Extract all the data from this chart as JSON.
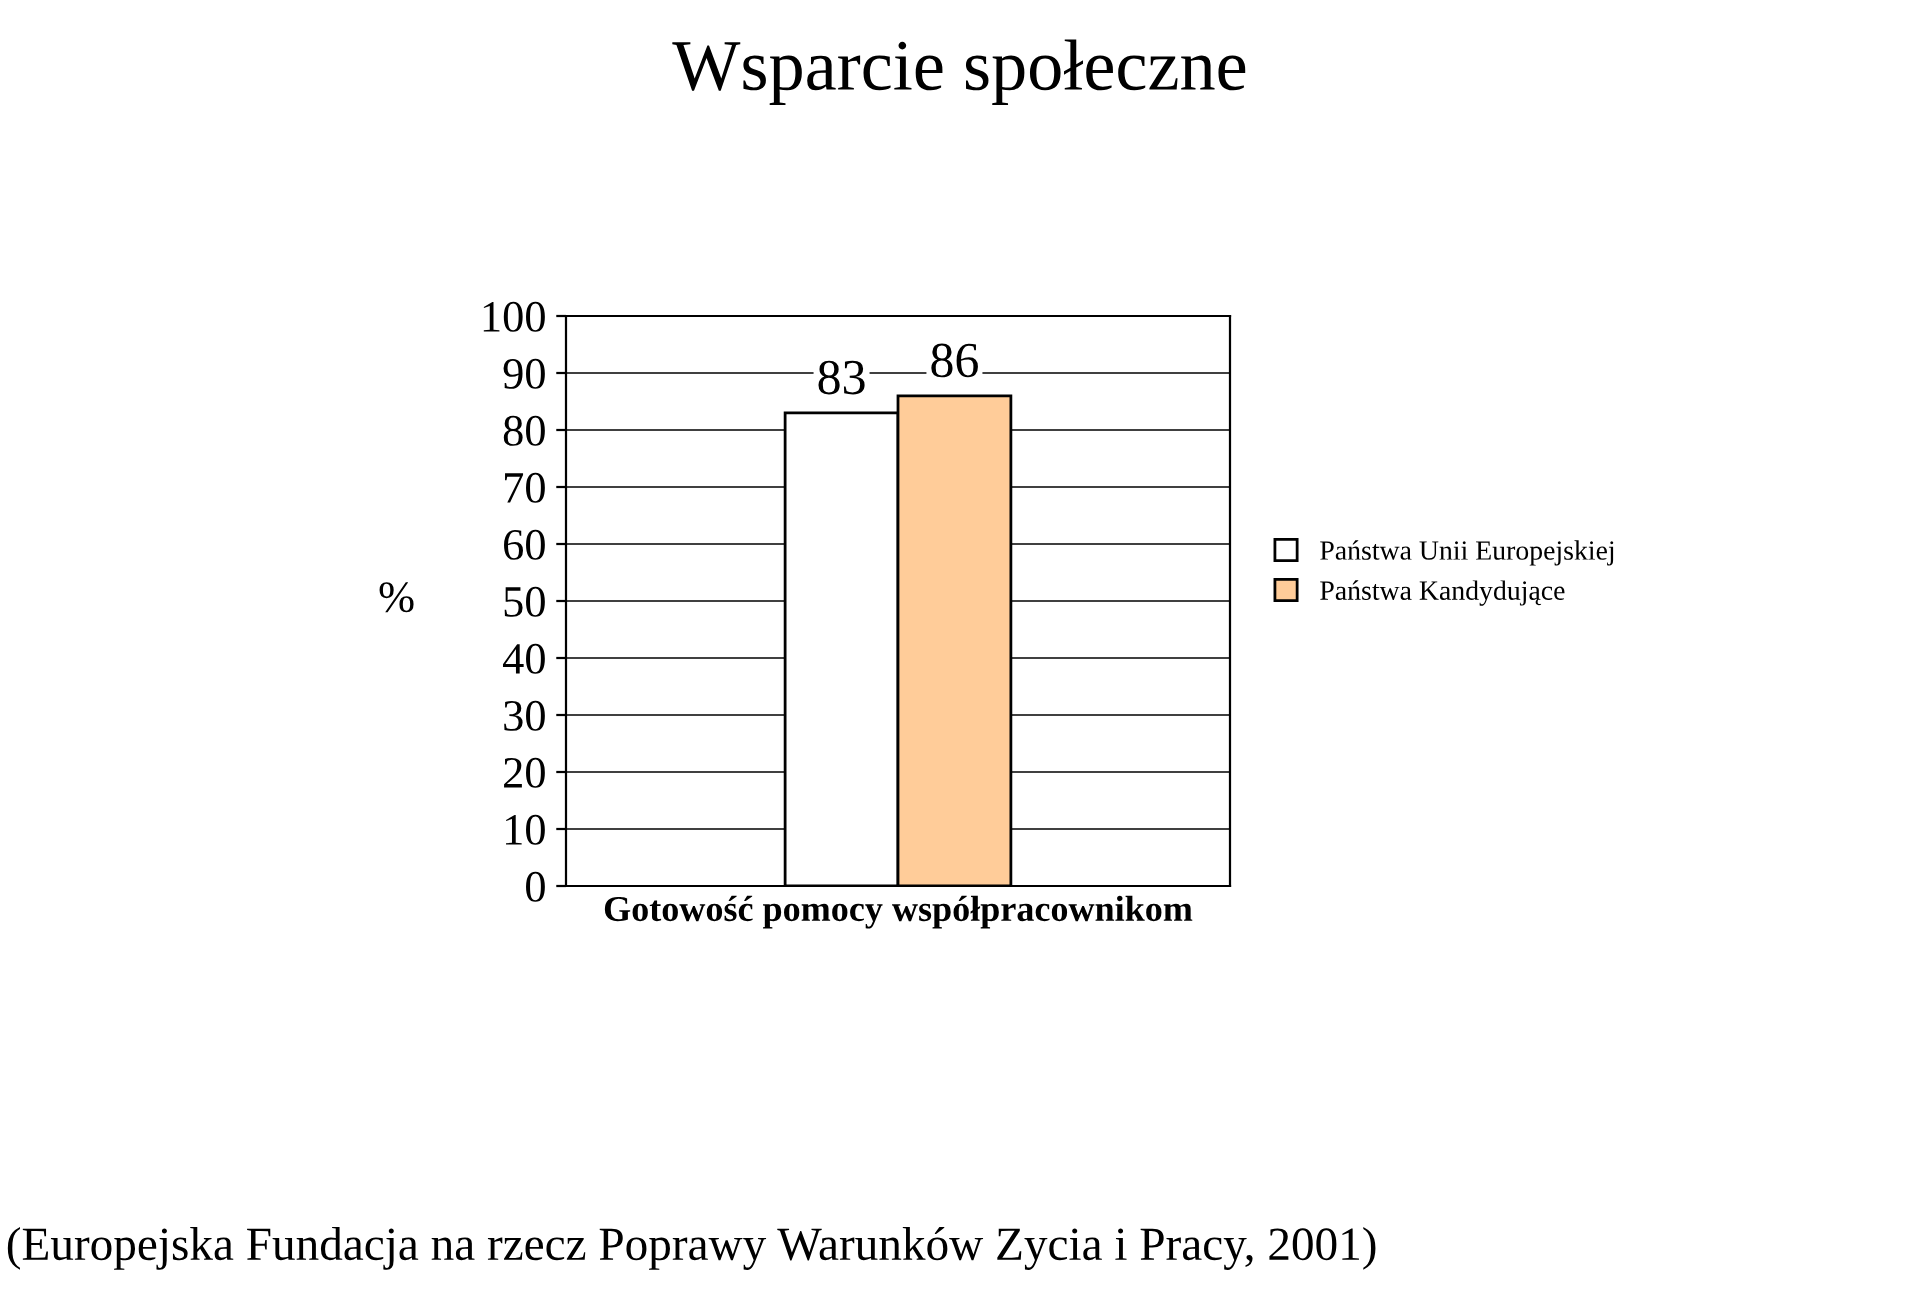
{
  "chart_data": {
    "type": "bar",
    "title": "Wsparcie społeczne",
    "ylabel": "%",
    "categories": [
      "Gotowość pomocy współpracownikom"
    ],
    "series": [
      {
        "name": "Państwa Unii Europejskiej",
        "color": "#ffffff",
        "values": [
          83
        ]
      },
      {
        "name": "Państwa Kandydujące",
        "color": "#ffcc99",
        "values": [
          86
        ]
      }
    ],
    "ylim": [
      0,
      100
    ],
    "yticks": [
      0,
      10,
      20,
      30,
      40,
      50,
      60,
      70,
      80,
      90,
      100
    ],
    "grid": "y",
    "legend": "right",
    "data_labels": true,
    "annotations": [
      "(Europejska Fundacja na rzecz Poprawy Warunków Zycia i Pracy, 2001)"
    ]
  }
}
